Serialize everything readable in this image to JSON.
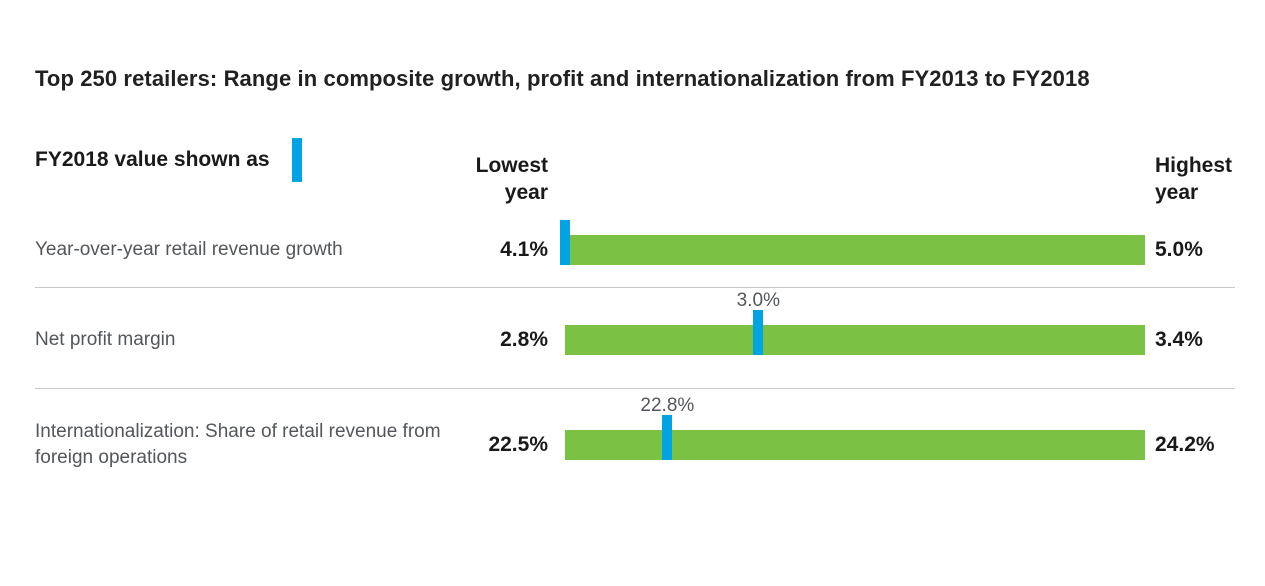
{
  "colors": {
    "bar_green": "#7bc143",
    "marker_blue": "#00a4e4",
    "separator": "#c7c8ca"
  },
  "chart_data": {
    "type": "bar",
    "subtype": "horizontal-range-bar-with-value-marker",
    "title": "Top 250 retailers: Range in composite growth, profit and internationalization from FY2013 to FY2018",
    "legend_label": "FY2018 value shown as",
    "column_headers": [
      "Lowest year",
      "Highest year"
    ],
    "legend_position": "top-left",
    "grid": false,
    "rows": [
      {
        "label": "Year-over-year retail revenue growth",
        "lowest": 4.1,
        "highest": 5.0,
        "fy2018": 4.1,
        "lowest_label": "4.1%",
        "highest_label": "5.0%",
        "fy2018_label": ""
      },
      {
        "label": "Net profit margin",
        "lowest": 2.8,
        "highest": 3.4,
        "fy2018": 3.0,
        "lowest_label": "2.8%",
        "highest_label": "3.4%",
        "fy2018_label": "3.0%"
      },
      {
        "label": "Internationalization: Share of retail revenue from foreign operations",
        "lowest": 22.5,
        "highest": 24.2,
        "fy2018": 22.8,
        "lowest_label": "22.5%",
        "highest_label": "24.2%",
        "fy2018_label": "22.8%"
      }
    ]
  }
}
